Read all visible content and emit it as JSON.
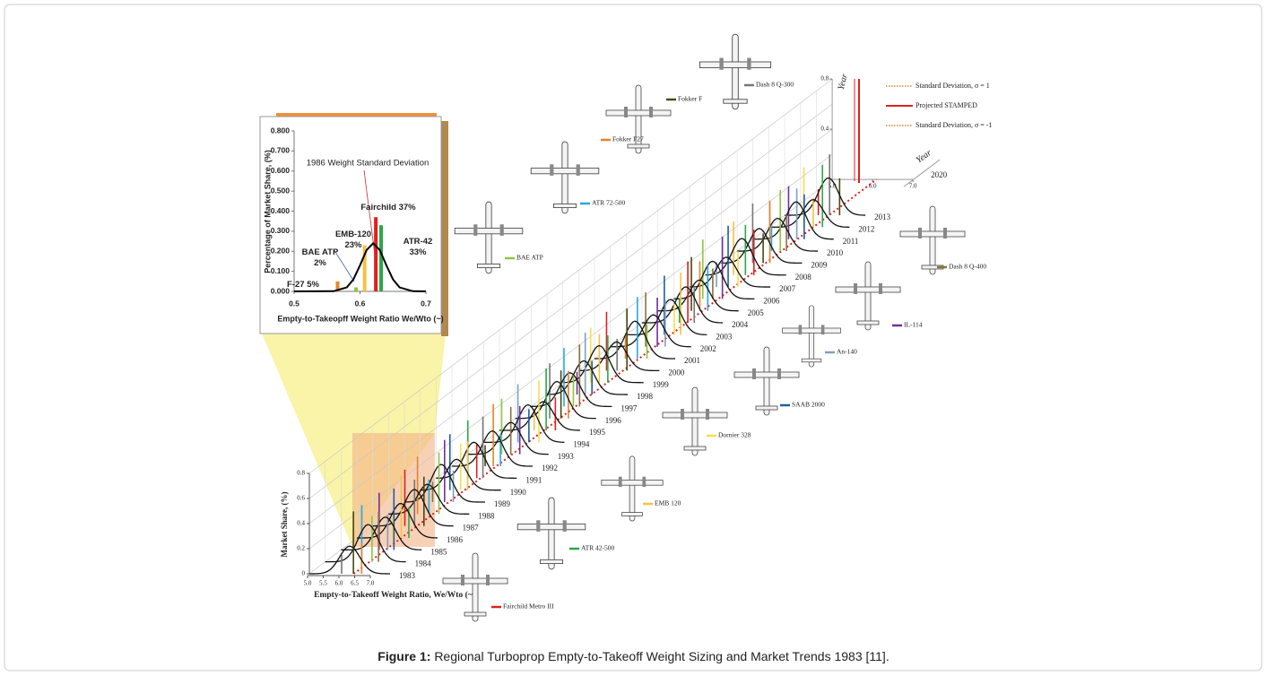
{
  "chart_data": [
    {
      "type": "bar",
      "title": "1986 Weight Standard Deviation",
      "x_label": "Empty-to-Takeopff Weight Ratio We/Wto (~)",
      "y_label": "Percentage of Market Share, (%)",
      "xlim": [
        0.5,
        0.7
      ],
      "xticks": [
        0.5,
        0.6,
        0.7
      ],
      "ylim": [
        0,
        0.8
      ],
      "yticks": [
        {
          "value": 0,
          "label": "0.000"
        },
        {
          "value": 0.1,
          "label": "0.100"
        },
        {
          "value": 0.2,
          "label": "0.200"
        },
        {
          "value": 0.3,
          "label": "0.300"
        },
        {
          "value": 0.4,
          "label": "0.400"
        },
        {
          "value": 0.5,
          "label": "0.500"
        },
        {
          "value": 0.6,
          "label": "0.600"
        },
        {
          "value": 0.7,
          "label": "0.700"
        },
        {
          "value": 0.8,
          "label": "0.800"
        }
      ],
      "x": [
        0.566,
        0.594,
        0.607,
        0.624,
        0.632
      ],
      "values": [
        0.05,
        0.02,
        0.23,
        0.37,
        0.33
      ],
      "value_labels": [
        "F-27 5%",
        "BAE ATP\n2%",
        "EMB-120\n23%",
        "Fairchild 37%",
        "ATR-42\n33%"
      ],
      "colors": [
        "#e8822a",
        "#8cc63f",
        "#f5c242",
        "#e02020",
        "#2aa84a"
      ],
      "curve": {
        "color": "#000000",
        "x": [
          0.5,
          0.56,
          0.58,
          0.59,
          0.6,
          0.61,
          0.62,
          0.63,
          0.64,
          0.65,
          0.66,
          0.68,
          0.7
        ],
        "values": [
          0,
          0.001,
          0.02,
          0.06,
          0.13,
          0.206,
          0.24,
          0.206,
          0.13,
          0.06,
          0.02,
          0.001,
          0
        ]
      }
    },
    {
      "type": "ridge",
      "y_label": "Market Share, (%)",
      "x_label": "Empty-to-Takeoff Weight Ratio, We/Wto (~)",
      "ylim": [
        0,
        0.8
      ],
      "yticks": [
        0,
        0.2,
        0.4,
        0.6,
        0.8
      ],
      "xlim": [
        5,
        7
      ],
      "xticks": [
        {
          "value": 5,
          "label": "5.0"
        },
        5.5,
        {
          "value": 6,
          "label": "6.0"
        },
        6.5,
        {
          "value": 7,
          "label": "7.0"
        }
      ],
      "categories": [
        "1983",
        "1984",
        "1985",
        "1986",
        "1987",
        "1988",
        "1989",
        "1990",
        "1991",
        "1992",
        "1993",
        "1994",
        "1995",
        "1996",
        "1997",
        "1998",
        "1999",
        "2000",
        "2001",
        "2002",
        "2003",
        "2004",
        "2005",
        "2006",
        "2007",
        "2008",
        "2009",
        "2010",
        "2011",
        "2012",
        "2013"
      ],
      "back_axis": {
        "year_label": "Year",
        "year_end": "2020",
        "yticks": [
          0.4,
          0.8
        ],
        "xticks": [
          {
            "value": 5,
            "label": "5.0"
          },
          {
            "value": 6,
            "label": "6.0"
          },
          {
            "value": 7,
            "label": "7.0"
          }
        ]
      },
      "legend": [
        {
          "name": "Standard Deviation, σ = 1",
          "color": "#e8822a",
          "style": "dotted"
        },
        {
          "name": "Projected STAMPED",
          "color": "#e02020",
          "style": "solid"
        },
        {
          "name": "Standard Deviation, σ = -1",
          "color": "#e8822a",
          "style": "dotted"
        }
      ]
    }
  ],
  "annotations": [
    {
      "label": "Dash 8 Q-300",
      "color": "#777777"
    },
    {
      "label": "Fokker F",
      "color": "#4a4a10"
    },
    {
      "label": "Fokker F27",
      "color": "#e8822a"
    },
    {
      "label": "ATR 72-500",
      "color": "#29a8e0"
    },
    {
      "label": "BAE ATP",
      "color": "#8cc63f"
    },
    {
      "label": "Dash 8 Q-400",
      "color": "#8b7340"
    },
    {
      "label": "IL-114",
      "color": "#7030a0"
    },
    {
      "label": "An-140",
      "color": "#7f9fbf"
    },
    {
      "label": "SAAB 2000",
      "color": "#1f5f9f"
    },
    {
      "label": "Dornier 328",
      "color": "#f5e04a"
    },
    {
      "label": "EMB 120",
      "color": "#f5c242"
    },
    {
      "label": "ATR 42-500",
      "color": "#2aa84a"
    },
    {
      "label": "Fairchild Metro III",
      "color": "#e02020"
    }
  ],
  "caption": {
    "label": "Figure 1:",
    "text": "Regional Turboprop Empty-to-Takeoff Weight Sizing and Market Trends 1983 [11]."
  }
}
